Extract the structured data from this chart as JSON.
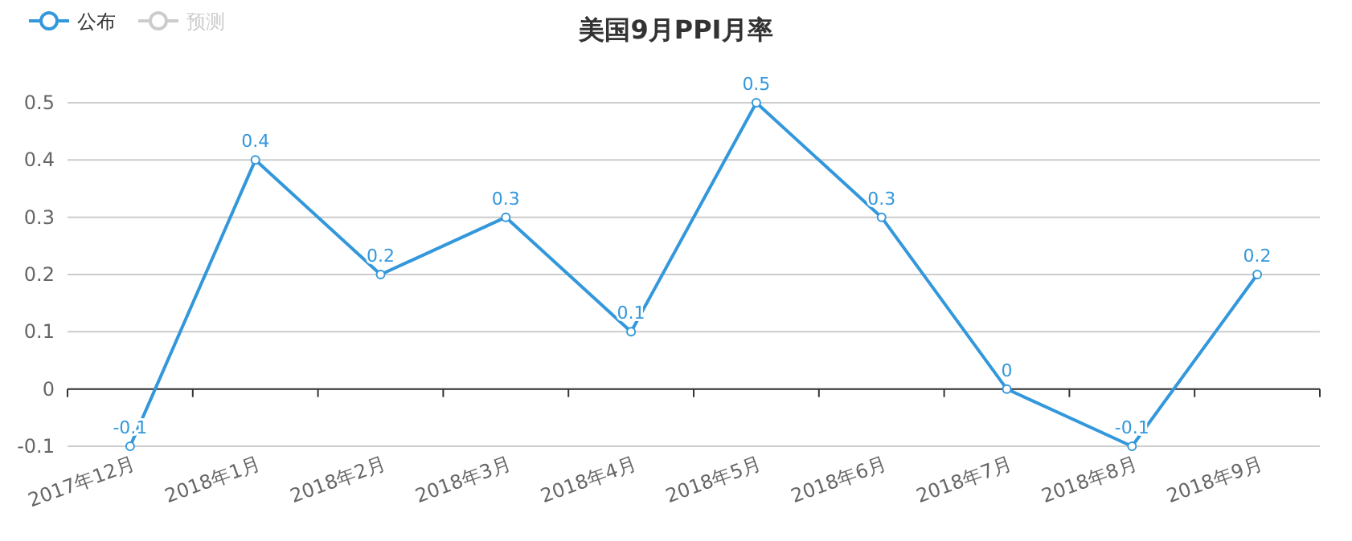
{
  "chart_data": {
    "type": "line",
    "title": "美国9月PPI月率",
    "categories": [
      "2017年12月",
      "2018年1月",
      "2018年2月",
      "2018年3月",
      "2018年4月",
      "2018年5月",
      "2018年6月",
      "2018年7月",
      "2018年8月",
      "2018年9月"
    ],
    "series": [
      {
        "name": "公布",
        "color": "#3398db",
        "values": [
          -0.1,
          0.4,
          0.2,
          0.3,
          0.1,
          0.5,
          0.3,
          0,
          -0.1,
          0.2
        ]
      },
      {
        "name": "预测",
        "color": "#cccccc",
        "values": [
          null,
          null,
          null,
          null,
          null,
          null,
          null,
          null,
          null,
          null
        ]
      }
    ],
    "ylim": [
      -0.1,
      0.5
    ],
    "yticks": [
      -0.1,
      0,
      0.1,
      0.2,
      0.3,
      0.4,
      0.5
    ],
    "grid": "y",
    "legend": "top left",
    "marker": "circle",
    "data_labels": true
  }
}
